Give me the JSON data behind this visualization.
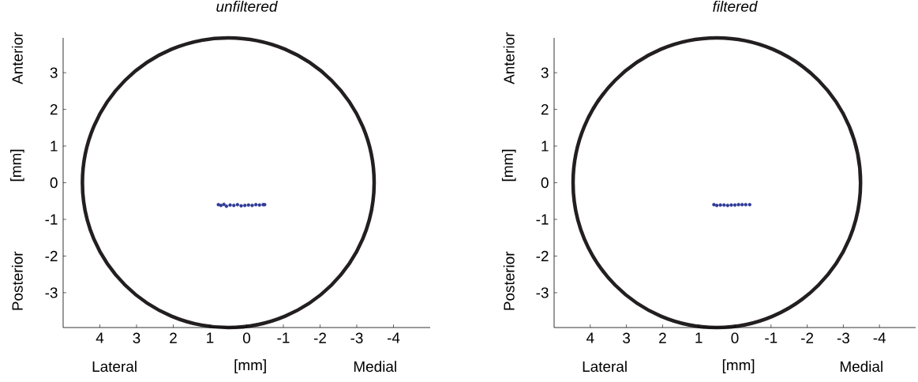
{
  "chart_data": [
    {
      "type": "scatter",
      "title": "unfiltered",
      "xlabel": "[mm]",
      "ylabel": "[mm]",
      "annotations": [
        "Lateral",
        "Medial",
        "Anterior",
        "Posterior"
      ],
      "xlim": [
        5,
        -5
      ],
      "ylim": [
        -3.95,
        3.95
      ],
      "xticks": [
        4,
        3,
        2,
        1,
        0,
        -1,
        -2,
        -3,
        -4
      ],
      "yticks": [
        -3,
        -2,
        -1,
        0,
        1,
        2,
        3
      ],
      "series": [
        {
          "type": "scatter",
          "color": "#2e3a97",
          "x": [
            0.77,
            0.7,
            0.62,
            0.55,
            0.45,
            0.35,
            0.25,
            0.15,
            0.05,
            -0.05,
            -0.15,
            -0.25,
            -0.35,
            -0.45,
            -0.49
          ],
          "values": [
            -0.6,
            -0.62,
            -0.59,
            -0.64,
            -0.61,
            -0.62,
            -0.6,
            -0.63,
            -0.62,
            -0.61,
            -0.62,
            -0.6,
            -0.61,
            -0.6,
            -0.6
          ]
        }
      ]
    },
    {
      "type": "scatter",
      "title": "filtered",
      "xlabel": "[mm]",
      "ylabel": "[mm]",
      "annotations": [
        "Lateral",
        "Medial",
        "Anterior",
        "Posterior"
      ],
      "xlim": [
        5,
        -5
      ],
      "ylim": [
        -3.95,
        3.95
      ],
      "xticks": [
        4,
        3,
        2,
        1,
        0,
        -1,
        -2,
        -3,
        -4
      ],
      "yticks": [
        -3,
        -2,
        -1,
        0,
        1,
        2,
        3
      ],
      "series": [
        {
          "type": "scatter",
          "color": "#2e3a97",
          "x": [
            0.58,
            0.5,
            0.4,
            0.3,
            0.2,
            0.1,
            0,
            -0.1,
            -0.2,
            -0.3,
            -0.41
          ],
          "values": [
            -0.6,
            -0.62,
            -0.61,
            -0.61,
            -0.62,
            -0.61,
            -0.61,
            -0.6,
            -0.6,
            -0.6,
            -0.6
          ]
        }
      ]
    }
  ]
}
